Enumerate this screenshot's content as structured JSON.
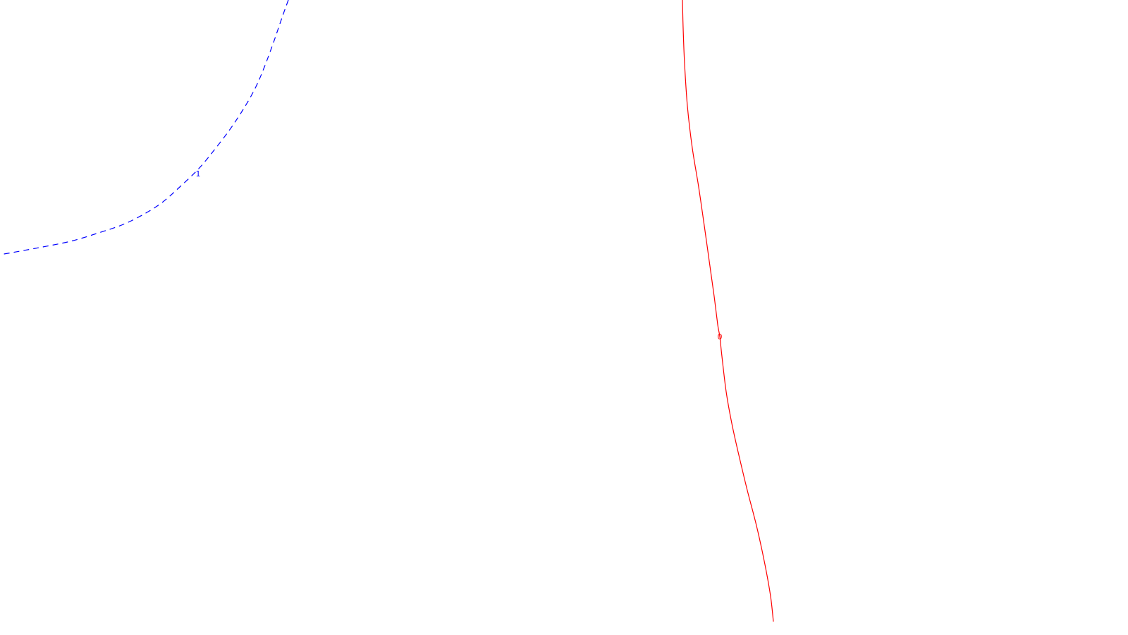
{
  "chart_data": {
    "type": "contour",
    "grid": false,
    "legend": "none",
    "series": [
      {
        "label": "0",
        "color": "#ff0000",
        "dashed": false,
        "points": [
          [
            968,
            0
          ],
          [
            969,
            40
          ],
          [
            971,
            90
          ],
          [
            975,
            150
          ],
          [
            982,
            210
          ],
          [
            991,
            265
          ],
          [
            999,
            320
          ],
          [
            1006,
            370
          ],
          [
            1013,
            420
          ],
          [
            1018,
            460
          ],
          [
            1021,
            477
          ],
          [
            1024,
            505
          ],
          [
            1030,
            555
          ],
          [
            1038,
            600
          ],
          [
            1048,
            645
          ],
          [
            1060,
            695
          ],
          [
            1073,
            745
          ],
          [
            1085,
            800
          ],
          [
            1093,
            845
          ],
          [
            1097,
            881
          ]
        ],
        "label_at": [
          1021,
          477
        ]
      },
      {
        "label": "1",
        "color": "#0000ff",
        "dashed": true,
        "points": [
          [
            409,
            0
          ],
          [
            400,
            25
          ],
          [
            388,
            60
          ],
          [
            375,
            95
          ],
          [
            362,
            125
          ],
          [
            345,
            155
          ],
          [
            325,
            185
          ],
          [
            302,
            215
          ],
          [
            281,
            240
          ],
          [
            255,
            265
          ],
          [
            230,
            287
          ],
          [
            205,
            303
          ],
          [
            175,
            318
          ],
          [
            140,
            330
          ],
          [
            100,
            342
          ],
          [
            50,
            352
          ],
          [
            0,
            361
          ]
        ],
        "label_at": [
          281,
          246
        ]
      }
    ]
  }
}
